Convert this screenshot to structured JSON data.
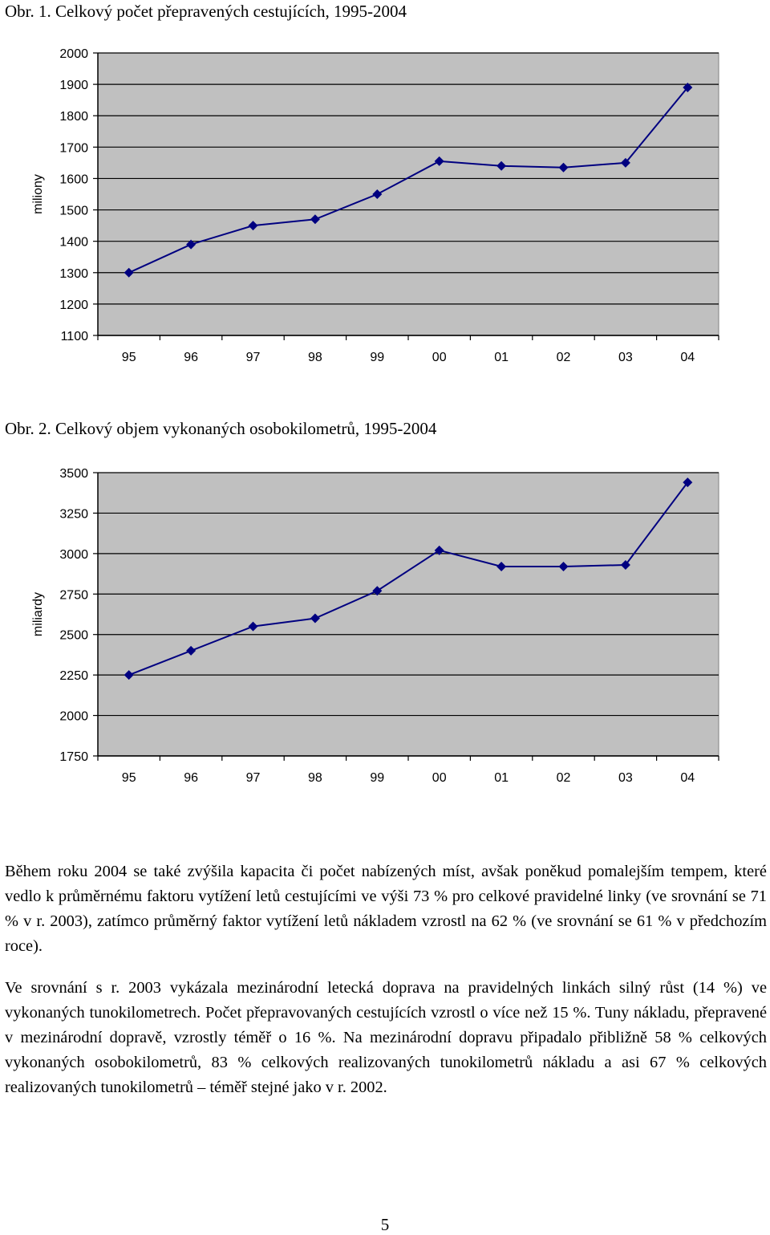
{
  "figures": [
    {
      "caption": "Obr. 1. Celkový počet přepravených cestujících, 1995-2004"
    },
    {
      "caption": "Obr. 2. Celkový objem vykonaných osobokilometrů, 1995-2004"
    }
  ],
  "chart_data": [
    {
      "type": "line",
      "title": "Obr. 1. Celkový počet přepravených cestujících, 1995-2004",
      "xlabel": "",
      "ylabel": "miliony",
      "categories": [
        "95",
        "96",
        "97",
        "98",
        "99",
        "00",
        "01",
        "02",
        "03",
        "04"
      ],
      "values": [
        1300,
        1390,
        1450,
        1470,
        1550,
        1655,
        1640,
        1635,
        1650,
        1890
      ],
      "ylim": [
        1100,
        2000
      ],
      "yticks": [
        2000,
        1900,
        1800,
        1700,
        1600,
        1500,
        1400,
        1300,
        1200,
        1100
      ],
      "grid": true,
      "plot_background": "#c0c0c0",
      "line_color": "#000080",
      "marker": "diamond"
    },
    {
      "type": "line",
      "title": "Obr. 2. Celkový objem vykonaných osobokilometrů, 1995-2004",
      "xlabel": "",
      "ylabel": "miliardy",
      "categories": [
        "95",
        "96",
        "97",
        "98",
        "99",
        "00",
        "01",
        "02",
        "03",
        "04"
      ],
      "values": [
        2250,
        2400,
        2550,
        2600,
        2770,
        3020,
        2920,
        2920,
        2930,
        3440
      ],
      "ylim": [
        1750,
        3500
      ],
      "yticks": [
        3500,
        3250,
        3000,
        2750,
        2500,
        2250,
        2000,
        1750
      ],
      "grid": true,
      "plot_background": "#c0c0c0",
      "line_color": "#000080",
      "marker": "diamond"
    }
  ],
  "text": {
    "paragraph1": "Během roku 2004 se také zvýšila kapacita či počet nabízených míst, avšak poněkud pomalejším tempem, které vedlo k průměrnému faktoru vytížení letů cestujícími ve výši 73 % pro celkové pravidelné linky (ve srovnání se 71 % v r. 2003), zatímco průměrný faktor vytížení letů nákladem vzrostl na 62 % (ve srovnání se 61 % v předchozím roce).",
    "paragraph2": "Ve srovnání s r. 2003 vykázala mezinárodní letecká doprava na pravidelných linkách silný růst (14 %) ve vykonaných tunokilometrech. Počet přepravovaných cestujících vzrostl o více než 15 %. Tuny nákladu, přepravené v mezinárodní dopravě, vzrostly téměř o 16 %. Na mezinárodní dopravu připadalo přibližně 58 % celkových vykonaných osobokilometrů, 83 % celkových realizovaných tunokilometrů nákladu a asi 67 % celkových realizovaných tunokilometrů – téměř stejné jako v r. 2002."
  },
  "page_number": "5"
}
